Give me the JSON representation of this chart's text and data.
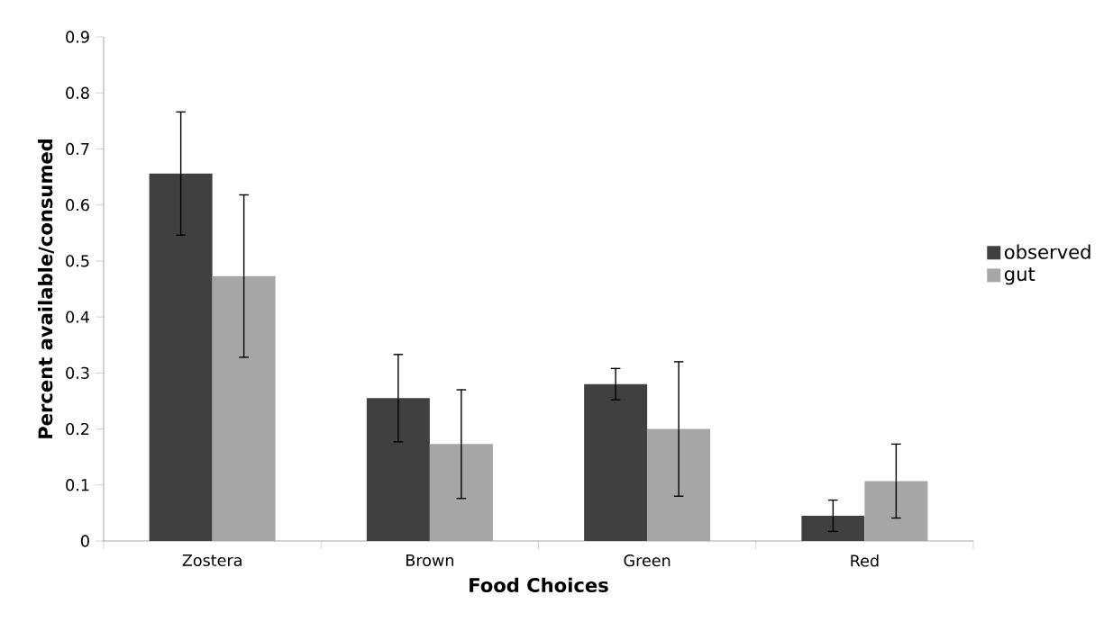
{
  "chart_data": {
    "type": "bar",
    "xlabel": "Food Choices",
    "ylabel": "Percent available/consumed",
    "categories": [
      "Zostera",
      "Brown",
      "Green",
      "Red"
    ],
    "series": [
      {
        "name": "observed",
        "color": "#404040",
        "values": [
          0.656,
          0.255,
          0.28,
          0.045
        ],
        "errors": [
          0.11,
          0.078,
          0.028,
          0.028
        ]
      },
      {
        "name": "gut",
        "color": "#a6a6a6",
        "values": [
          0.473,
          0.173,
          0.2,
          0.107
        ],
        "errors": [
          0.145,
          0.097,
          0.12,
          0.066
        ]
      }
    ],
    "ylim": [
      0,
      0.9
    ],
    "yticks": [
      0,
      0.1,
      0.2,
      0.3,
      0.4,
      0.5,
      0.6,
      0.7,
      0.8,
      0.9
    ],
    "grid": false,
    "legend": "right"
  }
}
